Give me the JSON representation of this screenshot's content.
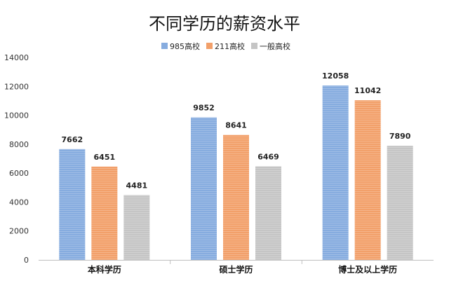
{
  "chart_data": {
    "type": "bar",
    "title": "不同学历的薪资水平",
    "categories": [
      "本科学历",
      "硕士学历",
      "博士及以上学历"
    ],
    "series": [
      {
        "name": "985高校",
        "values": [
          7662,
          9852,
          12058
        ],
        "color": "#86acdf"
      },
      {
        "name": "211高校",
        "values": [
          6451,
          8641,
          11042
        ],
        "color": "#f2a06a"
      },
      {
        "name": "一般高校",
        "values": [
          4481,
          6469,
          7890
        ],
        "color": "#c5c5c5"
      }
    ],
    "ylim": [
      0,
      14000
    ],
    "yticks": [
      0,
      2000,
      4000,
      6000,
      8000,
      10000,
      12000,
      14000
    ],
    "grid": false,
    "legend_position": "top-center"
  }
}
